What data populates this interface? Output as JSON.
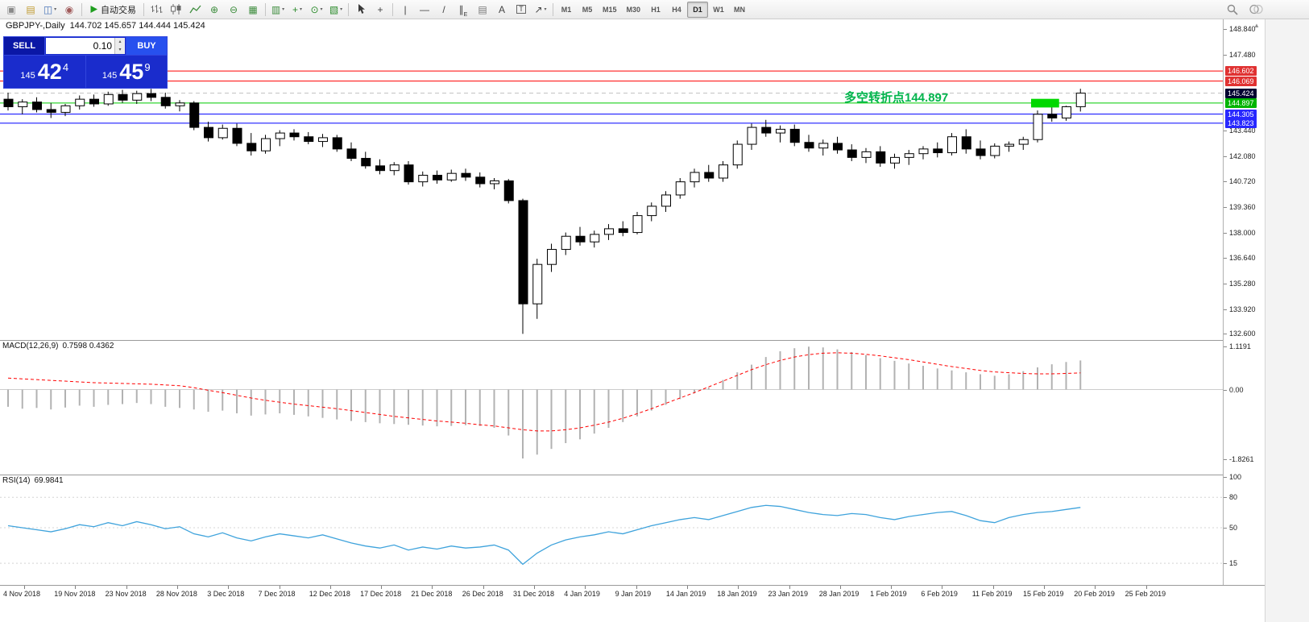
{
  "icons": {
    "volume_up": "▴",
    "volume_down": "▾",
    "scroll_up": "▲"
  },
  "toolbar": {
    "active_timeframe": "D1",
    "groups": [
      {
        "name": "system",
        "items": [
          {
            "name": "window-icon",
            "glyph": "▣",
            "color": "#8a8a8a"
          },
          {
            "name": "new-order-icon",
            "glyph": "▤",
            "color": "#c09a30"
          },
          {
            "name": "charts-menu-icon",
            "glyph": "◫",
            "color": "#4a76b8",
            "dropdown": true
          },
          {
            "name": "help-icon",
            "glyph": "◉",
            "color": "#a05a5a"
          }
        ]
      },
      {
        "name": "autotrading",
        "items": [
          {
            "name": "autotrading-icon",
            "icon": "play",
            "label": "自动交易"
          }
        ]
      },
      {
        "name": "chart-controls",
        "items": [
          {
            "name": "bar-chart-icon",
            "icon": "bars"
          },
          {
            "name": "candlestick-chart-icon",
            "icon": "candles"
          },
          {
            "name": "line-chart-icon",
            "icon": "linechart"
          },
          {
            "name": "zoom-in-icon",
            "glyph": "⊕",
            "color": "#3c8c3c"
          },
          {
            "name": "zoom-out-icon",
            "glyph": "⊖",
            "color": "#3c8c3c"
          },
          {
            "name": "tile-windows-icon",
            "glyph": "▦",
            "color": "#3c8c3c"
          }
        ]
      },
      {
        "name": "chart-menus",
        "items": [
          {
            "name": "chart-list-icon",
            "glyph": "▥",
            "color": "#3c8c3c",
            "dropdown": true
          },
          {
            "name": "indicators-icon",
            "glyph": "+",
            "color": "#2c8c2c",
            "dropdown": true
          },
          {
            "name": "periods-icon",
            "glyph": "⊙",
            "color": "#2c8c2c",
            "dropdown": true
          },
          {
            "name": "templates-icon",
            "glyph": "▧",
            "color": "#2c8c2c",
            "dropdown": true
          }
        ]
      },
      {
        "name": "cursor-tools",
        "items": [
          {
            "name": "cursor-icon",
            "icon": "cursor"
          },
          {
            "name": "crosshair-icon",
            "glyph": "+",
            "color": "#444"
          }
        ]
      },
      {
        "name": "draw-tools",
        "items": [
          {
            "name": "vertical-line-icon",
            "glyph": "|",
            "color": "#444"
          },
          {
            "name": "horizontal-line-icon",
            "glyph": "—",
            "color": "#444"
          },
          {
            "name": "trendline-icon",
            "glyph": "/",
            "color": "#444"
          },
          {
            "name": "equidistant-channel-icon",
            "glyph": "∥",
            "color": "#444",
            "sub": "E"
          },
          {
            "name": "fibonacci-icon",
            "glyph": "▤",
            "color": "#777"
          },
          {
            "name": "text-icon",
            "glyph": "A",
            "color": "#444"
          },
          {
            "name": "text-label-icon",
            "glyph": "T",
            "color": "#444",
            "boxed": true
          },
          {
            "name": "arrows-icon",
            "glyph": "↗",
            "color": "#444",
            "dropdown": true
          }
        ]
      },
      {
        "name": "timeframes",
        "timeframes": [
          "M1",
          "M5",
          "M15",
          "M30",
          "H1",
          "H4",
          "D1",
          "W1",
          "MN"
        ]
      }
    ],
    "right_items": [
      {
        "name": "search-icon",
        "icon": "search"
      },
      {
        "name": "community-icon",
        "icon": "community"
      }
    ]
  },
  "chart": {
    "symbol_label": "GBPJPY-,Daily",
    "ohlc_label": "144.702 145.657 144.444 145.424",
    "annotation_text": "多空转折点144.897",
    "annotation_color": "#00b44c",
    "trade_panel": {
      "sell_label": "SELL",
      "buy_label": "BUY",
      "volume": "0.10",
      "sell_price_prefix": "145",
      "sell_price_big": "42",
      "sell_price_sup": "4",
      "buy_price_prefix": "145",
      "buy_price_big": "45",
      "buy_price_sup": "9"
    },
    "levels": [
      {
        "price": 146.602,
        "color": "#ff0000",
        "style": "solid",
        "tag_color": "#e03232"
      },
      {
        "price": 146.069,
        "color": "#ff0000",
        "style": "solid",
        "tag_color": "#e03232"
      },
      {
        "price": 145.424,
        "color": "#c0c0c0",
        "style": "dash",
        "tag_color": "#000030"
      },
      {
        "price": 144.897,
        "color": "#00cc00",
        "style": "solid",
        "tag_color": "#00b400"
      },
      {
        "price": 144.305,
        "color": "#0000ff",
        "style": "solid",
        "tag_color": "#2828ff"
      },
      {
        "price": 143.823,
        "color": "#0000ff",
        "style": "solid",
        "tag_color": "#2828ff"
      }
    ],
    "zone": {
      "from_bar": 72,
      "to_bar": 73,
      "price_top": 145.12,
      "price_bottom": 144.66,
      "color": "#00d800"
    },
    "axis_ticks": [
      148.84,
      147.48,
      143.44,
      142.08,
      140.72,
      139.36,
      138.0,
      136.64,
      135.28,
      133.92,
      132.6
    ]
  },
  "macd": {
    "name": "MACD(12,26,9)",
    "values_label": "0.7598 0.4362",
    "scale_labels": [
      "1.1191",
      "0.00",
      "-1.8261"
    ],
    "scale_values": [
      1.1191,
      0,
      -1.8261
    ]
  },
  "rsi": {
    "name": "RSI(14)",
    "value_label": "69.9841",
    "scale_labels": [
      "100",
      "80",
      "50",
      "15"
    ],
    "scale_values": [
      100,
      80,
      50,
      15
    ],
    "levels": [
      80,
      50,
      15
    ]
  },
  "time_axis": {
    "labels": [
      "4 Nov 2018",
      "19 Nov 2018",
      "23 Nov 2018",
      "28 Nov 2018",
      "3 Dec 2018",
      "7 Dec 2018",
      "12 Dec 2018",
      "17 Dec 2018",
      "21 Dec 2018",
      "26 Dec 2018",
      "31 Dec 2018",
      "4 Jan 2019",
      "9 Jan 2019",
      "14 Jan 2019",
      "18 Jan 2019",
      "23 Jan 2019",
      "28 Jan 2019",
      "1 Feb 2019",
      "6 Feb 2019",
      "11 Feb 2019",
      "15 Feb 2019",
      "20 Feb 2019",
      "25 Feb 2019"
    ]
  },
  "chart_data": {
    "type": "candlestick",
    "symbol": "GBPJPY-",
    "timeframe": "Daily",
    "ohlc_current": {
      "open": 144.702,
      "high": 145.657,
      "low": 144.444,
      "close": 145.424
    },
    "candles": [
      [
        145.1,
        145.45,
        144.5,
        144.7
      ],
      [
        144.7,
        145.1,
        144.3,
        144.95
      ],
      [
        144.95,
        145.2,
        144.4,
        144.55
      ],
      [
        144.55,
        144.9,
        144.1,
        144.4
      ],
      [
        144.4,
        144.85,
        144.2,
        144.75
      ],
      [
        144.75,
        145.3,
        144.55,
        145.1
      ],
      [
        145.1,
        145.35,
        144.7,
        144.85
      ],
      [
        144.85,
        145.5,
        144.75,
        145.35
      ],
      [
        145.35,
        145.6,
        144.9,
        145.05
      ],
      [
        145.05,
        145.55,
        144.85,
        145.4
      ],
      [
        145.4,
        145.65,
        145.0,
        145.2
      ],
      [
        145.2,
        145.45,
        144.6,
        144.75
      ],
      [
        144.75,
        145.05,
        144.45,
        144.9
      ],
      [
        144.9,
        145.0,
        143.45,
        143.6
      ],
      [
        143.6,
        143.9,
        142.85,
        143.05
      ],
      [
        143.05,
        143.75,
        142.95,
        143.55
      ],
      [
        143.55,
        143.8,
        142.6,
        142.75
      ],
      [
        142.75,
        143.3,
        142.1,
        142.35
      ],
      [
        142.35,
        143.2,
        142.2,
        143.0
      ],
      [
        143.0,
        143.45,
        142.6,
        143.3
      ],
      [
        143.3,
        143.5,
        142.9,
        143.1
      ],
      [
        143.1,
        143.35,
        142.7,
        142.85
      ],
      [
        142.85,
        143.25,
        142.55,
        143.05
      ],
      [
        143.05,
        143.2,
        142.3,
        142.45
      ],
      [
        142.45,
        142.8,
        141.8,
        141.95
      ],
      [
        141.95,
        142.3,
        141.4,
        141.55
      ],
      [
        141.55,
        141.9,
        141.1,
        141.3
      ],
      [
        141.3,
        141.75,
        141.05,
        141.6
      ],
      [
        141.6,
        141.8,
        140.55,
        140.7
      ],
      [
        140.7,
        141.25,
        140.45,
        141.05
      ],
      [
        141.05,
        141.3,
        140.6,
        140.8
      ],
      [
        140.8,
        141.35,
        140.7,
        141.15
      ],
      [
        141.15,
        141.4,
        140.75,
        140.95
      ],
      [
        140.95,
        141.2,
        140.4,
        140.6
      ],
      [
        140.6,
        140.9,
        140.3,
        140.75
      ],
      [
        140.75,
        140.85,
        139.55,
        139.7
      ],
      [
        139.7,
        139.8,
        132.6,
        134.2
      ],
      [
        134.2,
        136.6,
        133.4,
        136.3
      ],
      [
        136.3,
        137.4,
        135.9,
        137.1
      ],
      [
        137.1,
        138.0,
        136.8,
        137.8
      ],
      [
        137.8,
        138.3,
        137.3,
        137.5
      ],
      [
        137.5,
        138.1,
        137.2,
        137.9
      ],
      [
        137.9,
        138.45,
        137.6,
        138.2
      ],
      [
        138.2,
        138.6,
        137.8,
        138.0
      ],
      [
        138.0,
        139.1,
        137.9,
        138.9
      ],
      [
        138.9,
        139.6,
        138.6,
        139.4
      ],
      [
        139.4,
        140.2,
        139.1,
        140.0
      ],
      [
        140.0,
        140.9,
        139.8,
        140.7
      ],
      [
        140.7,
        141.4,
        140.4,
        141.2
      ],
      [
        141.2,
        141.6,
        140.7,
        140.9
      ],
      [
        140.9,
        141.8,
        140.7,
        141.6
      ],
      [
        141.6,
        142.9,
        141.4,
        142.7
      ],
      [
        142.7,
        143.8,
        142.4,
        143.6
      ],
      [
        143.6,
        144.0,
        143.1,
        143.3
      ],
      [
        143.3,
        143.7,
        142.8,
        143.5
      ],
      [
        143.5,
        143.75,
        142.6,
        142.8
      ],
      [
        142.8,
        143.2,
        142.3,
        142.5
      ],
      [
        142.5,
        142.95,
        142.1,
        142.75
      ],
      [
        142.75,
        143.1,
        142.2,
        142.4
      ],
      [
        142.4,
        142.7,
        141.8,
        142.0
      ],
      [
        142.0,
        142.5,
        141.7,
        142.3
      ],
      [
        142.3,
        142.6,
        141.5,
        141.7
      ],
      [
        141.7,
        142.2,
        141.4,
        142.0
      ],
      [
        142.0,
        142.4,
        141.6,
        142.2
      ],
      [
        142.2,
        142.6,
        141.9,
        142.45
      ],
      [
        142.45,
        142.8,
        142.0,
        142.25
      ],
      [
        142.25,
        143.3,
        142.1,
        143.1
      ],
      [
        143.1,
        143.5,
        142.2,
        142.45
      ],
      [
        142.45,
        142.9,
        141.9,
        142.1
      ],
      [
        142.1,
        142.75,
        141.95,
        142.6
      ],
      [
        142.6,
        142.85,
        142.3,
        142.7
      ],
      [
        142.7,
        143.1,
        142.4,
        142.95
      ],
      [
        142.95,
        144.5,
        142.8,
        144.3
      ],
      [
        144.3,
        144.7,
        143.9,
        144.1
      ],
      [
        144.1,
        144.75,
        143.95,
        144.7
      ],
      [
        144.702,
        145.657,
        144.444,
        145.424
      ]
    ],
    "macd_histogram": [
      -0.45,
      -0.5,
      -0.48,
      -0.52,
      -0.47,
      -0.42,
      -0.45,
      -0.4,
      -0.38,
      -0.35,
      -0.38,
      -0.45,
      -0.48,
      -0.52,
      -0.58,
      -0.55,
      -0.62,
      -0.68,
      -0.65,
      -0.62,
      -0.66,
      -0.7,
      -0.74,
      -0.78,
      -0.82,
      -0.85,
      -0.88,
      -0.9,
      -0.92,
      -0.94,
      -0.96,
      -0.95,
      -0.93,
      -0.95,
      -1.0,
      -1.2,
      -1.8,
      -1.7,
      -1.55,
      -1.4,
      -1.3,
      -1.15,
      -1.0,
      -0.85,
      -0.7,
      -0.55,
      -0.4,
      -0.25,
      -0.1,
      0.05,
      0.25,
      0.45,
      0.65,
      0.85,
      1.0,
      1.08,
      1.12,
      1.1,
      1.05,
      0.98,
      0.9,
      0.82,
      0.75,
      0.68,
      0.62,
      0.55,
      0.5,
      0.45,
      0.4,
      0.36,
      0.4,
      0.48,
      0.58,
      0.66,
      0.72,
      0.76
    ],
    "macd_signal": [
      0.3,
      0.28,
      0.26,
      0.24,
      0.22,
      0.2,
      0.18,
      0.17,
      0.16,
      0.15,
      0.14,
      0.12,
      0.1,
      0.05,
      -0.02,
      -0.08,
      -0.15,
      -0.22,
      -0.28,
      -0.33,
      -0.38,
      -0.42,
      -0.46,
      -0.5,
      -0.55,
      -0.6,
      -0.65,
      -0.7,
      -0.74,
      -0.78,
      -0.82,
      -0.85,
      -0.88,
      -0.92,
      -0.95,
      -1.0,
      -1.05,
      -1.08,
      -1.08,
      -1.05,
      -1.0,
      -0.93,
      -0.85,
      -0.75,
      -0.63,
      -0.5,
      -0.36,
      -0.22,
      -0.08,
      0.07,
      0.22,
      0.37,
      0.52,
      0.65,
      0.76,
      0.85,
      0.91,
      0.95,
      0.96,
      0.95,
      0.92,
      0.88,
      0.83,
      0.78,
      0.72,
      0.66,
      0.6,
      0.55,
      0.5,
      0.46,
      0.44,
      0.42,
      0.41,
      0.41,
      0.42,
      0.4362
    ],
    "rsi": [
      52,
      50,
      48,
      46,
      49,
      53,
      51,
      55,
      52,
      56,
      53,
      49,
      51,
      44,
      41,
      45,
      40,
      37,
      41,
      44,
      42,
      40,
      43,
      39,
      35,
      32,
      30,
      33,
      28,
      31,
      29,
      32,
      30,
      31,
      33,
      28,
      14,
      25,
      33,
      38,
      41,
      43,
      46,
      44,
      48,
      52,
      55,
      58,
      60,
      58,
      62,
      66,
      70,
      72,
      71,
      68,
      65,
      63,
      62,
      64,
      63,
      60,
      58,
      61,
      63,
      65,
      66,
      62,
      57,
      55,
      60,
      63,
      65,
      66,
      68,
      69.98
    ]
  }
}
